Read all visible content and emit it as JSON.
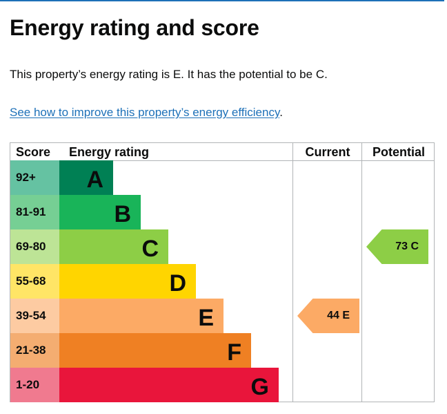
{
  "page": {
    "title": "Energy rating and score",
    "summary": "This property’s energy rating is E. It has the potential to be C.",
    "improve_link": "See how to improve this property’s energy efficiency",
    "improve_suffix": "."
  },
  "chart_data": {
    "type": "table",
    "columns": [
      "Score",
      "Energy rating",
      "Current",
      "Potential"
    ],
    "bands": [
      {
        "score": "92+",
        "letter": "A",
        "color": "#008054",
        "score_color": "#65c2a2"
      },
      {
        "score": "81-91",
        "letter": "B",
        "color": "#19b459",
        "score_color": "#76cf94"
      },
      {
        "score": "69-80",
        "letter": "C",
        "color": "#8dce46",
        "score_color": "#bde496"
      },
      {
        "score": "55-68",
        "letter": "D",
        "color": "#ffd500",
        "score_color": "#ffe566"
      },
      {
        "score": "39-54",
        "letter": "E",
        "color": "#fcaa65",
        "score_color": "#fdcba2"
      },
      {
        "score": "21-38",
        "letter": "F",
        "color": "#ef8023",
        "score_color": "#f4ad71"
      },
      {
        "score": "1-20",
        "letter": "G",
        "color": "#e9153b",
        "score_color": "#f07a8f"
      }
    ],
    "current": {
      "value": 44,
      "letter": "E",
      "label": "44 E",
      "color": "#fcaa65"
    },
    "potential": {
      "value": 73,
      "letter": "C",
      "label": "73 C",
      "color": "#8dce46"
    }
  }
}
